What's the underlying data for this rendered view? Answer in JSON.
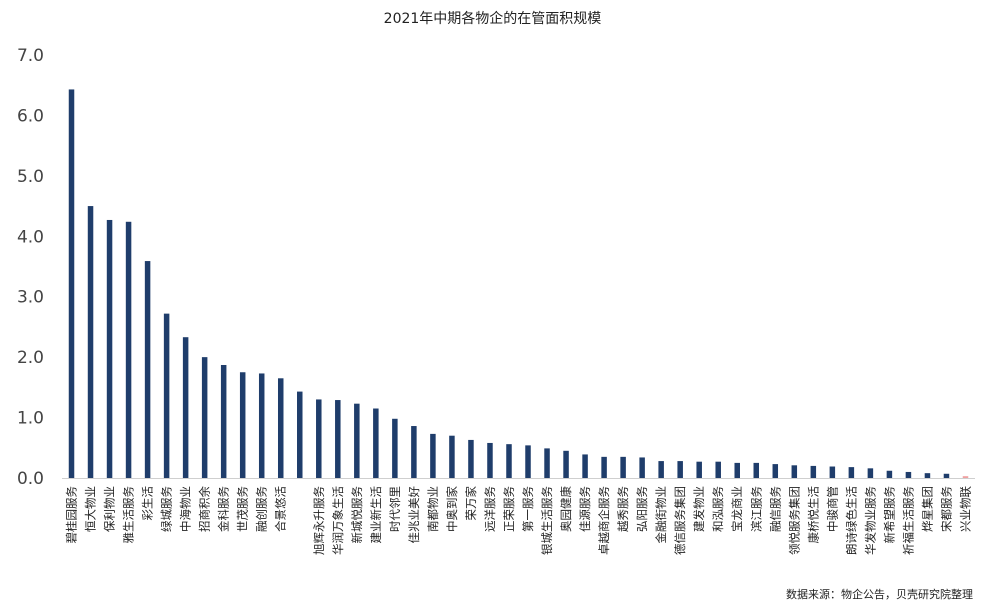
{
  "chart_data": {
    "type": "bar",
    "title": "2021年中期各物企的在管面积规模",
    "source": "数据来源：物企公告，贝壳研究院整理",
    "ylim": [
      0,
      7
    ],
    "yticks": [
      "0.0",
      "1.0",
      "2.0",
      "3.0",
      "4.0",
      "5.0",
      "6.0",
      "7.0"
    ],
    "grid": false,
    "bar_color": "#1f3d6b",
    "last_bar_color": "#f0a0a0",
    "categories": [
      "碧桂园服务",
      "恒大物业",
      "保利物业",
      "雅生活服务",
      "彩生活",
      "绿城服务",
      "中海物业",
      "招商积余",
      "金科服务",
      "世茂服务",
      "融创服务",
      "合景悠活",
      "",
      "旭辉永升服务",
      "华润万象生活",
      "新城悦服务",
      "建业新生活",
      "时代邻里",
      "佳兆业美好",
      "南都物业",
      "中奥到家",
      "荣万家",
      "远洋服务",
      "正荣服务",
      "第一服务",
      "银城生活服务",
      "奥园健康",
      "佳源服务",
      "卓越商企服务",
      "越秀服务",
      "弘阳服务",
      "金融街物业",
      "德信服务集团",
      "建发物业",
      "和泓服务",
      "宝龙商业",
      "滨江服务",
      "融信服务",
      "领悦服务集团",
      "康桥悦生活",
      "中骏商管",
      "朗诗绿色生活",
      "华发物业服务",
      "新希望服务",
      "祈福生活服务",
      "烨星集团",
      "宋都服务",
      "兴业物联"
    ],
    "values": [
      6.43,
      4.5,
      4.27,
      4.24,
      3.59,
      2.72,
      2.33,
      2.0,
      1.87,
      1.75,
      1.73,
      1.65,
      1.43,
      1.3,
      1.29,
      1.23,
      1.15,
      0.98,
      0.86,
      0.73,
      0.7,
      0.63,
      0.58,
      0.56,
      0.54,
      0.49,
      0.45,
      0.39,
      0.35,
      0.35,
      0.34,
      0.28,
      0.28,
      0.27,
      0.27,
      0.25,
      0.25,
      0.23,
      0.21,
      0.2,
      0.19,
      0.18,
      0.16,
      0.12,
      0.1,
      0.08,
      0.07,
      0.03
    ]
  }
}
